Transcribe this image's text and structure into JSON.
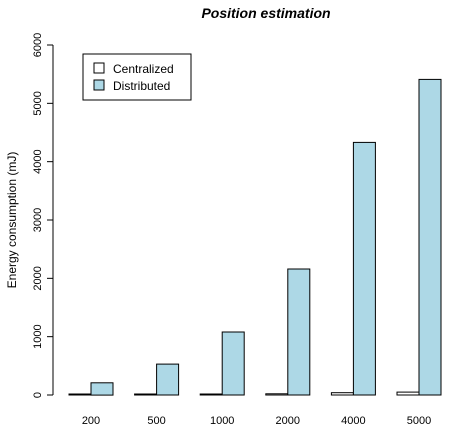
{
  "colors": {
    "centralized_fill": "#ffffff",
    "distributed_fill": "#add8e6",
    "stroke": "#000000"
  },
  "chart_data": {
    "type": "bar",
    "title": "Position estimation",
    "xlabel": "",
    "ylabel": "Energy consumption (mJ)",
    "categories": [
      "200",
      "500",
      "1000",
      "2000",
      "4000",
      "5000"
    ],
    "series": [
      {
        "name": "Centralized",
        "values": [
          2,
          5,
          10,
          20,
          40,
          50
        ]
      },
      {
        "name": "Distributed",
        "values": [
          210,
          530,
          1080,
          2160,
          4330,
          5410
        ]
      }
    ],
    "ylim": [
      0,
      6000
    ],
    "yticks": [
      "0",
      "1000",
      "2000",
      "3000",
      "4000",
      "5000",
      "6000"
    ],
    "grid": false,
    "legend_position": "top-left"
  }
}
